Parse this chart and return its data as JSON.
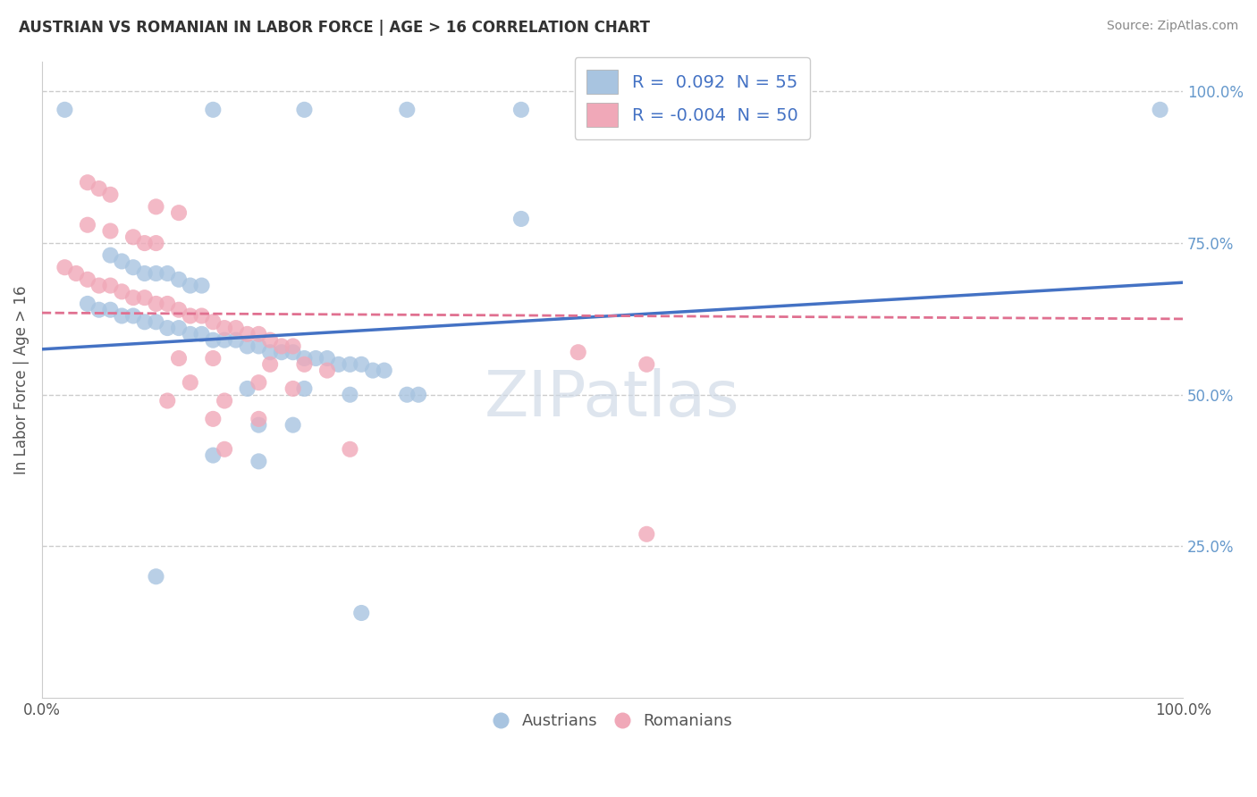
{
  "title": "AUSTRIAN VS ROMANIAN IN LABOR FORCE | AGE > 16 CORRELATION CHART",
  "source": "Source: ZipAtlas.com",
  "ylabel": "In Labor Force | Age > 16",
  "blue_line": {
    "x0": 0.0,
    "y0": 0.575,
    "x1": 1.0,
    "y1": 0.685
  },
  "pink_line": {
    "x0": 0.0,
    "y0": 0.635,
    "x1": 1.0,
    "y1": 0.625
  },
  "austrians_x": [
    0.02,
    0.15,
    0.23,
    0.32,
    0.42,
    0.98,
    0.42,
    0.06,
    0.07,
    0.08,
    0.09,
    0.1,
    0.11,
    0.12,
    0.13,
    0.14,
    0.04,
    0.05,
    0.06,
    0.07,
    0.08,
    0.09,
    0.1,
    0.11,
    0.12,
    0.13,
    0.14,
    0.15,
    0.16,
    0.17,
    0.18,
    0.19,
    0.2,
    0.21,
    0.22,
    0.23,
    0.24,
    0.25,
    0.26,
    0.27,
    0.28,
    0.29,
    0.3,
    0.18,
    0.23,
    0.27,
    0.32,
    0.33,
    0.19,
    0.22,
    0.15,
    0.19,
    0.1,
    0.28
  ],
  "austrians_y": [
    0.97,
    0.97,
    0.97,
    0.97,
    0.97,
    0.97,
    0.79,
    0.73,
    0.72,
    0.71,
    0.7,
    0.7,
    0.7,
    0.69,
    0.68,
    0.68,
    0.65,
    0.64,
    0.64,
    0.63,
    0.63,
    0.62,
    0.62,
    0.61,
    0.61,
    0.6,
    0.6,
    0.59,
    0.59,
    0.59,
    0.58,
    0.58,
    0.57,
    0.57,
    0.57,
    0.56,
    0.56,
    0.56,
    0.55,
    0.55,
    0.55,
    0.54,
    0.54,
    0.51,
    0.51,
    0.5,
    0.5,
    0.5,
    0.45,
    0.45,
    0.4,
    0.39,
    0.2,
    0.14
  ],
  "romanians_x": [
    0.04,
    0.05,
    0.06,
    0.1,
    0.12,
    0.04,
    0.06,
    0.08,
    0.09,
    0.1,
    0.02,
    0.03,
    0.04,
    0.05,
    0.06,
    0.07,
    0.08,
    0.09,
    0.1,
    0.11,
    0.12,
    0.13,
    0.14,
    0.15,
    0.16,
    0.17,
    0.18,
    0.19,
    0.2,
    0.21,
    0.22,
    0.12,
    0.15,
    0.2,
    0.23,
    0.25,
    0.13,
    0.19,
    0.22,
    0.11,
    0.16,
    0.15,
    0.19,
    0.47,
    0.53,
    0.16,
    0.27,
    0.53
  ],
  "romanians_y": [
    0.85,
    0.84,
    0.83,
    0.81,
    0.8,
    0.78,
    0.77,
    0.76,
    0.75,
    0.75,
    0.71,
    0.7,
    0.69,
    0.68,
    0.68,
    0.67,
    0.66,
    0.66,
    0.65,
    0.65,
    0.64,
    0.63,
    0.63,
    0.62,
    0.61,
    0.61,
    0.6,
    0.6,
    0.59,
    0.58,
    0.58,
    0.56,
    0.56,
    0.55,
    0.55,
    0.54,
    0.52,
    0.52,
    0.51,
    0.49,
    0.49,
    0.46,
    0.46,
    0.57,
    0.55,
    0.41,
    0.41,
    0.27
  ],
  "background_color": "#ffffff",
  "grid_color": "#cccccc",
  "blue_color": "#4472c4",
  "pink_color": "#e07090",
  "dot_blue": "#a8c4e0",
  "dot_pink": "#f0a8b8",
  "xlim": [
    0.0,
    1.0
  ],
  "ylim": [
    0.0,
    1.05
  ]
}
